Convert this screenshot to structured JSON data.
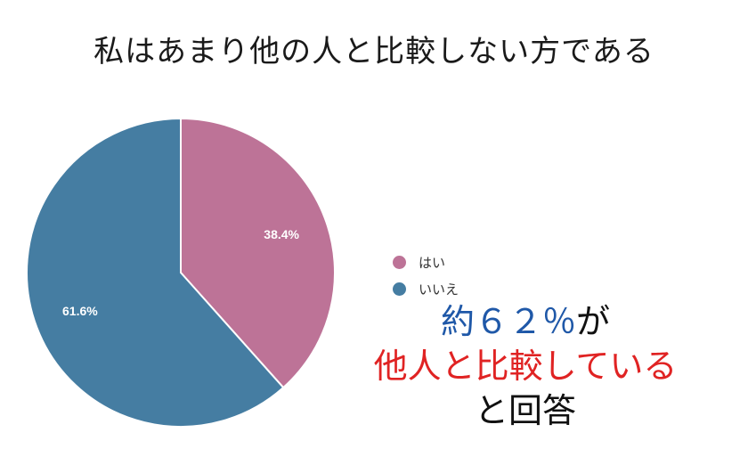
{
  "title": "私はあまり他の人と比較しない方である",
  "chart_data": {
    "type": "pie",
    "slices": [
      {
        "label": "はい",
        "value": 38.4,
        "display": "38.4%",
        "color": "#bd7397"
      },
      {
        "label": "いいえ",
        "value": 61.6,
        "display": "61.6%",
        "color": "#457da2"
      }
    ],
    "legend": {
      "placement": "right"
    }
  },
  "callout": {
    "line1_number": "約６２％",
    "line1_suffix": "が",
    "line2": "他人と比較している",
    "line3": "と回答"
  }
}
